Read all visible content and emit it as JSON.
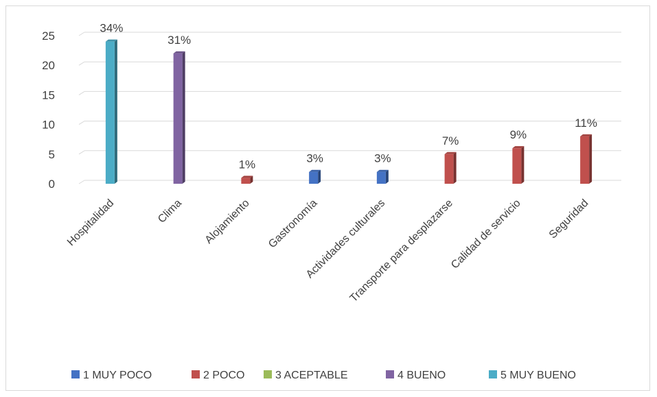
{
  "chart_data": {
    "type": "bar",
    "categories": [
      "Hospitalidad",
      "Clima",
      "Alojamiento",
      "Gastronomía",
      "Actividades culturales",
      "Transporte para desplazarse",
      "Calidad de servicio",
      "Seguridad"
    ],
    "values": [
      24,
      22,
      1,
      2,
      2,
      5,
      6,
      8
    ],
    "data_labels": [
      "34%",
      "31%",
      "1%",
      "3%",
      "3%",
      "7%",
      "9%",
      "11%"
    ],
    "series_of_bar": [
      4,
      3,
      1,
      0,
      0,
      1,
      1,
      1
    ],
    "yticks": [
      "0",
      "5",
      "10",
      "15",
      "20",
      "25"
    ],
    "ylim": [
      0,
      25
    ],
    "grid": true,
    "legend_position": "bottom",
    "legend": [
      {
        "label": "1 MUY POCO",
        "color": "#4472c4"
      },
      {
        "label": "2 POCO",
        "color": "#c0504d"
      },
      {
        "label": "3 ACEPTABLE",
        "color": "#9bbb59"
      },
      {
        "label": "4 BUENO",
        "color": "#8064a2"
      },
      {
        "label": "5 MUY BUENO",
        "color": "#4bacc6"
      }
    ]
  }
}
